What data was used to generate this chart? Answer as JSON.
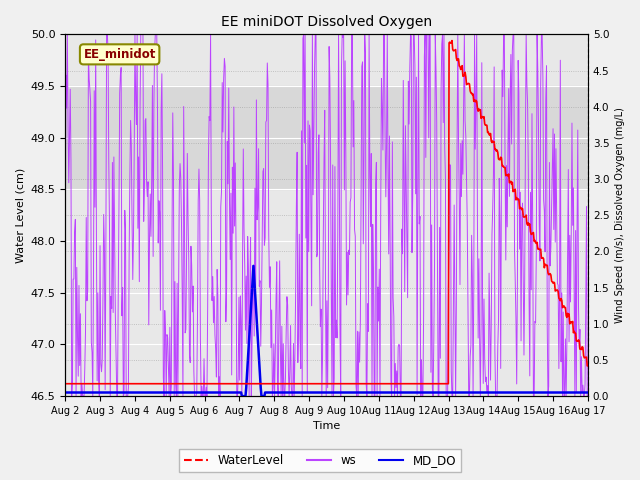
{
  "title": "EE miniDOT Dissolved Oxygen",
  "xlabel": "Time",
  "ylabel_left": "Water Level (cm)",
  "ylabel_right": "Wind Speed (m/s), Dissolved Oxygen (mg/L)",
  "annotation": "EE_minidot",
  "ylim_left": [
    46.5,
    50.0
  ],
  "ylim_right": [
    0.0,
    5.0
  ],
  "xtick_labels": [
    "Aug 2",
    "Aug 3",
    "Aug 4",
    "Aug 5",
    "Aug 6",
    "Aug 7",
    "Aug 8",
    "Aug 9",
    "Aug 10",
    "Aug 11",
    "Aug 12",
    "Aug 13",
    "Aug 14",
    "Aug 15",
    "Aug 16",
    "Aug 17"
  ],
  "gray_band": [
    48.5,
    49.5
  ],
  "water_level_color": "#FF0000",
  "ws_color": "#BB44FF",
  "md_do_color": "#0000EE",
  "fig_facecolor": "#f0f0f0",
  "plot_facecolor": "#e8e8e8",
  "grid_color": "#ffffff",
  "annotation_facecolor": "#FFFFCC",
  "annotation_edgecolor": "#888800",
  "annotation_textcolor": "#880000",
  "legend_labels": [
    "WaterLevel",
    "ws",
    "MD_DO"
  ]
}
